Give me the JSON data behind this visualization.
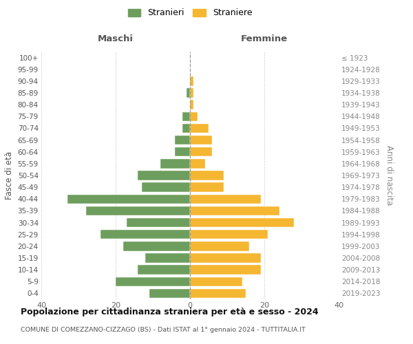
{
  "age_groups": [
    "0-4",
    "5-9",
    "10-14",
    "15-19",
    "20-24",
    "25-29",
    "30-34",
    "35-39",
    "40-44",
    "45-49",
    "50-54",
    "55-59",
    "60-64",
    "65-69",
    "70-74",
    "75-79",
    "80-84",
    "85-89",
    "90-94",
    "95-99",
    "100+"
  ],
  "birth_years": [
    "2019-2023",
    "2014-2018",
    "2009-2013",
    "2004-2008",
    "1999-2003",
    "1994-1998",
    "1989-1993",
    "1984-1988",
    "1979-1983",
    "1974-1978",
    "1969-1973",
    "1964-1968",
    "1959-1963",
    "1954-1958",
    "1949-1953",
    "1944-1948",
    "1939-1943",
    "1934-1938",
    "1929-1933",
    "1924-1928",
    "≤ 1923"
  ],
  "maschi": [
    11,
    20,
    14,
    12,
    18,
    24,
    17,
    28,
    33,
    13,
    14,
    8,
    4,
    4,
    2,
    2,
    0,
    1,
    0,
    0,
    0
  ],
  "femmine": [
    15,
    14,
    19,
    19,
    16,
    21,
    28,
    24,
    19,
    9,
    9,
    4,
    6,
    6,
    5,
    2,
    1,
    1,
    1,
    0,
    0
  ],
  "color_maschi": "#6e9e5e",
  "color_femmine": "#f5b731",
  "xlim": 40,
  "title": "Popolazione per cittadinanza straniera per età e sesso - 2024",
  "subtitle": "COMUNE DI COMEZZANO-CIZZAGO (BS) - Dati ISTAT al 1° gennaio 2024 - TUTTITALIA.IT",
  "ylabel_left": "Fasce di età",
  "ylabel_right": "Anni di nascita",
  "legend_maschi": "Stranieri",
  "legend_femmine": "Straniere",
  "header_maschi": "Maschi",
  "header_femmine": "Femmine"
}
